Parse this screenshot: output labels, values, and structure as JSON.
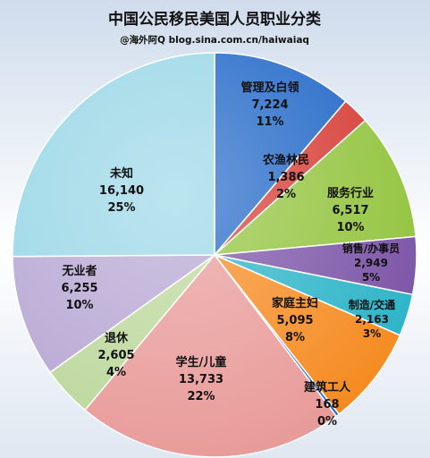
{
  "chart_data": {
    "type": "pie",
    "title": "中国公民移民美国人员职业分类",
    "subtitle": "@海外阿Q blog.sina.com.cn/haiwaiaq",
    "slices": [
      {
        "name": "管理及白领",
        "value": 7224,
        "value_label": "7,224",
        "percent_label": "11%",
        "color": "#1f66c7"
      },
      {
        "name": "农渔林民",
        "value": 1386,
        "value_label": "1,386",
        "percent_label": "2%",
        "color": "#d63a33"
      },
      {
        "name": "服务行业",
        "value": 6517,
        "value_label": "6,517",
        "percent_label": "10%",
        "color": "#91c33b"
      },
      {
        "name": "销售/办事员",
        "value": 2949,
        "value_label": "2,949",
        "percent_label": "5%",
        "color": "#7a52a6"
      },
      {
        "name": "制造/交通",
        "value": 2163,
        "value_label": "2,163",
        "percent_label": "3%",
        "color": "#2ab3c7"
      },
      {
        "name": "家庭主妇",
        "value": 5095,
        "value_label": "5,095",
        "percent_label": "8%",
        "color": "#f58a1f"
      },
      {
        "name": "建筑工人",
        "value": 168,
        "value_label": "168",
        "percent_label": "0%",
        "color": "#1f66c7"
      },
      {
        "name": "学生/儿童",
        "value": 13733,
        "value_label": "13,733",
        "percent_label": "22%",
        "color": "#e89a98"
      },
      {
        "name": "退休",
        "value": 2605,
        "value_label": "2,605",
        "percent_label": "4%",
        "color": "#bcd79a"
      },
      {
        "name": "无业者",
        "value": 6255,
        "value_label": "6,255",
        "percent_label": "10%",
        "color": "#b6a6d3"
      },
      {
        "name": "未知",
        "value": 16140,
        "value_label": "16,140",
        "percent_label": "25%",
        "color": "#97d6e6"
      }
    ]
  }
}
